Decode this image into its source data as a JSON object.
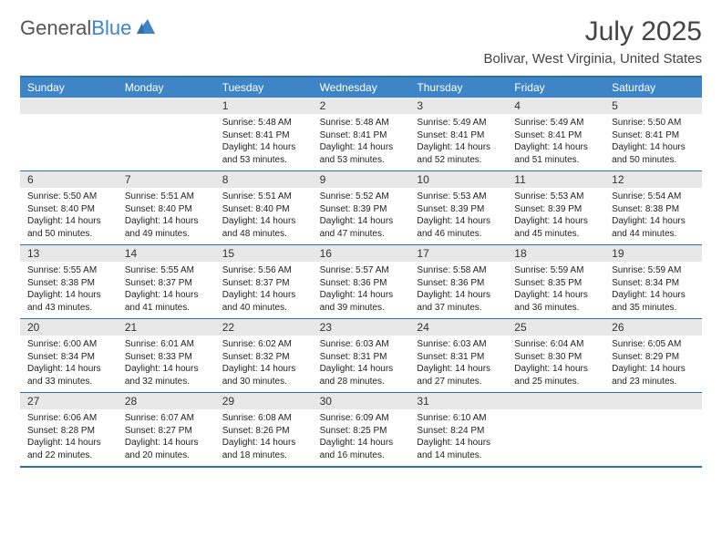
{
  "logo": {
    "word1": "General",
    "word2": "Blue",
    "accent_color": "#3d85c6",
    "text_color": "#555555"
  },
  "title": "July 2025",
  "location": "Bolivar, West Virginia, United States",
  "colors": {
    "header_bg": "#3d85c6",
    "header_text": "#ffffff",
    "border": "#2f6fa8",
    "daynum_bg": "#e8e8e8",
    "text": "#222222"
  },
  "fonts": {
    "title_size": 30,
    "location_size": 15,
    "dayheader_size": 12,
    "daynum_size": 12,
    "body_size": 10
  },
  "day_labels": [
    "Sunday",
    "Monday",
    "Tuesday",
    "Wednesday",
    "Thursday",
    "Friday",
    "Saturday"
  ],
  "weeks": [
    [
      null,
      null,
      {
        "n": "1",
        "sr": "Sunrise: 5:48 AM",
        "ss": "Sunset: 8:41 PM",
        "dl1": "Daylight: 14 hours",
        "dl2": "and 53 minutes."
      },
      {
        "n": "2",
        "sr": "Sunrise: 5:48 AM",
        "ss": "Sunset: 8:41 PM",
        "dl1": "Daylight: 14 hours",
        "dl2": "and 53 minutes."
      },
      {
        "n": "3",
        "sr": "Sunrise: 5:49 AM",
        "ss": "Sunset: 8:41 PM",
        "dl1": "Daylight: 14 hours",
        "dl2": "and 52 minutes."
      },
      {
        "n": "4",
        "sr": "Sunrise: 5:49 AM",
        "ss": "Sunset: 8:41 PM",
        "dl1": "Daylight: 14 hours",
        "dl2": "and 51 minutes."
      },
      {
        "n": "5",
        "sr": "Sunrise: 5:50 AM",
        "ss": "Sunset: 8:41 PM",
        "dl1": "Daylight: 14 hours",
        "dl2": "and 50 minutes."
      }
    ],
    [
      {
        "n": "6",
        "sr": "Sunrise: 5:50 AM",
        "ss": "Sunset: 8:40 PM",
        "dl1": "Daylight: 14 hours",
        "dl2": "and 50 minutes."
      },
      {
        "n": "7",
        "sr": "Sunrise: 5:51 AM",
        "ss": "Sunset: 8:40 PM",
        "dl1": "Daylight: 14 hours",
        "dl2": "and 49 minutes."
      },
      {
        "n": "8",
        "sr": "Sunrise: 5:51 AM",
        "ss": "Sunset: 8:40 PM",
        "dl1": "Daylight: 14 hours",
        "dl2": "and 48 minutes."
      },
      {
        "n": "9",
        "sr": "Sunrise: 5:52 AM",
        "ss": "Sunset: 8:39 PM",
        "dl1": "Daylight: 14 hours",
        "dl2": "and 47 minutes."
      },
      {
        "n": "10",
        "sr": "Sunrise: 5:53 AM",
        "ss": "Sunset: 8:39 PM",
        "dl1": "Daylight: 14 hours",
        "dl2": "and 46 minutes."
      },
      {
        "n": "11",
        "sr": "Sunrise: 5:53 AM",
        "ss": "Sunset: 8:39 PM",
        "dl1": "Daylight: 14 hours",
        "dl2": "and 45 minutes."
      },
      {
        "n": "12",
        "sr": "Sunrise: 5:54 AM",
        "ss": "Sunset: 8:38 PM",
        "dl1": "Daylight: 14 hours",
        "dl2": "and 44 minutes."
      }
    ],
    [
      {
        "n": "13",
        "sr": "Sunrise: 5:55 AM",
        "ss": "Sunset: 8:38 PM",
        "dl1": "Daylight: 14 hours",
        "dl2": "and 43 minutes."
      },
      {
        "n": "14",
        "sr": "Sunrise: 5:55 AM",
        "ss": "Sunset: 8:37 PM",
        "dl1": "Daylight: 14 hours",
        "dl2": "and 41 minutes."
      },
      {
        "n": "15",
        "sr": "Sunrise: 5:56 AM",
        "ss": "Sunset: 8:37 PM",
        "dl1": "Daylight: 14 hours",
        "dl2": "and 40 minutes."
      },
      {
        "n": "16",
        "sr": "Sunrise: 5:57 AM",
        "ss": "Sunset: 8:36 PM",
        "dl1": "Daylight: 14 hours",
        "dl2": "and 39 minutes."
      },
      {
        "n": "17",
        "sr": "Sunrise: 5:58 AM",
        "ss": "Sunset: 8:36 PM",
        "dl1": "Daylight: 14 hours",
        "dl2": "and 37 minutes."
      },
      {
        "n": "18",
        "sr": "Sunrise: 5:59 AM",
        "ss": "Sunset: 8:35 PM",
        "dl1": "Daylight: 14 hours",
        "dl2": "and 36 minutes."
      },
      {
        "n": "19",
        "sr": "Sunrise: 5:59 AM",
        "ss": "Sunset: 8:34 PM",
        "dl1": "Daylight: 14 hours",
        "dl2": "and 35 minutes."
      }
    ],
    [
      {
        "n": "20",
        "sr": "Sunrise: 6:00 AM",
        "ss": "Sunset: 8:34 PM",
        "dl1": "Daylight: 14 hours",
        "dl2": "and 33 minutes."
      },
      {
        "n": "21",
        "sr": "Sunrise: 6:01 AM",
        "ss": "Sunset: 8:33 PM",
        "dl1": "Daylight: 14 hours",
        "dl2": "and 32 minutes."
      },
      {
        "n": "22",
        "sr": "Sunrise: 6:02 AM",
        "ss": "Sunset: 8:32 PM",
        "dl1": "Daylight: 14 hours",
        "dl2": "and 30 minutes."
      },
      {
        "n": "23",
        "sr": "Sunrise: 6:03 AM",
        "ss": "Sunset: 8:31 PM",
        "dl1": "Daylight: 14 hours",
        "dl2": "and 28 minutes."
      },
      {
        "n": "24",
        "sr": "Sunrise: 6:03 AM",
        "ss": "Sunset: 8:31 PM",
        "dl1": "Daylight: 14 hours",
        "dl2": "and 27 minutes."
      },
      {
        "n": "25",
        "sr": "Sunrise: 6:04 AM",
        "ss": "Sunset: 8:30 PM",
        "dl1": "Daylight: 14 hours",
        "dl2": "and 25 minutes."
      },
      {
        "n": "26",
        "sr": "Sunrise: 6:05 AM",
        "ss": "Sunset: 8:29 PM",
        "dl1": "Daylight: 14 hours",
        "dl2": "and 23 minutes."
      }
    ],
    [
      {
        "n": "27",
        "sr": "Sunrise: 6:06 AM",
        "ss": "Sunset: 8:28 PM",
        "dl1": "Daylight: 14 hours",
        "dl2": "and 22 minutes."
      },
      {
        "n": "28",
        "sr": "Sunrise: 6:07 AM",
        "ss": "Sunset: 8:27 PM",
        "dl1": "Daylight: 14 hours",
        "dl2": "and 20 minutes."
      },
      {
        "n": "29",
        "sr": "Sunrise: 6:08 AM",
        "ss": "Sunset: 8:26 PM",
        "dl1": "Daylight: 14 hours",
        "dl2": "and 18 minutes."
      },
      {
        "n": "30",
        "sr": "Sunrise: 6:09 AM",
        "ss": "Sunset: 8:25 PM",
        "dl1": "Daylight: 14 hours",
        "dl2": "and 16 minutes."
      },
      {
        "n": "31",
        "sr": "Sunrise: 6:10 AM",
        "ss": "Sunset: 8:24 PM",
        "dl1": "Daylight: 14 hours",
        "dl2": "and 14 minutes."
      },
      null,
      null
    ]
  ]
}
